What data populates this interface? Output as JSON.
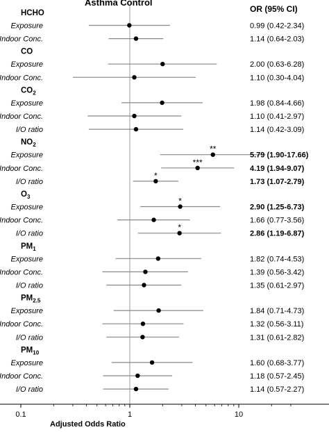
{
  "chart_data": {
    "type": "forest",
    "title": "Asthma Control",
    "or_header": "OR  (95% CI)",
    "xlabel": "Adjusted Odds Ratio",
    "x_scale": "log",
    "xlim": [
      0.1,
      30
    ],
    "x_ticks": [
      0.1,
      1,
      10
    ],
    "x_tick_labels": [
      "0.1",
      "1",
      "10"
    ],
    "reference_line": 1,
    "groups": [
      {
        "name": "HCHO",
        "name_main": "HCHO",
        "name_sub": "",
        "rows": [
          {
            "label": "Exposure",
            "or": 0.99,
            "lo": 0.42,
            "hi": 2.34,
            "text": "0.99 (0.42-2.34)",
            "sig": "",
            "bold": false
          },
          {
            "label": "Indoor Conc.",
            "or": 1.14,
            "lo": 0.64,
            "hi": 2.03,
            "text": "1.14 (0.64-2.03)",
            "sig": "",
            "bold": false
          }
        ]
      },
      {
        "name": "CO",
        "name_main": "CO",
        "name_sub": "",
        "rows": [
          {
            "label": "Exposure",
            "or": 2.0,
            "lo": 0.63,
            "hi": 6.28,
            "text": "2.00 (0.63-6.28)",
            "sig": "",
            "bold": false
          },
          {
            "label": "Indoor Conc.",
            "or": 1.1,
            "lo": 0.3,
            "hi": 4.04,
            "text": "1.10 (0.30-4.04)",
            "sig": "",
            "bold": false
          }
        ]
      },
      {
        "name": "CO2",
        "name_main": "CO",
        "name_sub": "2",
        "rows": [
          {
            "label": "Exposure",
            "or": 1.98,
            "lo": 0.84,
            "hi": 4.66,
            "text": "1.98 (0.84-4.66)",
            "sig": "",
            "bold": false
          },
          {
            "label": "Indoor Conc.",
            "or": 1.1,
            "lo": 0.41,
            "hi": 2.97,
            "text": "1.10 (0.41-2.97)",
            "sig": "",
            "bold": false
          },
          {
            "label": "I/O ratio",
            "or": 1.14,
            "lo": 0.42,
            "hi": 3.09,
            "text": "1.14 (0.42-3.09)",
            "sig": "",
            "bold": false
          }
        ]
      },
      {
        "name": "NO2",
        "name_main": "NO",
        "name_sub": "2",
        "rows": [
          {
            "label": "Exposure",
            "or": 5.79,
            "lo": 1.9,
            "hi": 17.66,
            "text": "5.79 (1.90-17.66)",
            "sig": "**",
            "bold": true
          },
          {
            "label": "Indoor Conc.",
            "or": 4.19,
            "lo": 1.94,
            "hi": 9.07,
            "text": "4.19 (1.94-9.07)",
            "sig": "***",
            "bold": true
          },
          {
            "label": "I/O ratio",
            "or": 1.73,
            "lo": 1.07,
            "hi": 2.79,
            "text": "1.73 (1.07-2.79)",
            "sig": "*",
            "bold": true
          }
        ]
      },
      {
        "name": "O3",
        "name_main": "O",
        "name_sub": "3",
        "rows": [
          {
            "label": "Exposure",
            "or": 2.9,
            "lo": 1.25,
            "hi": 6.73,
            "text": "2.90 (1.25-6.73)",
            "sig": "*",
            "bold": true
          },
          {
            "label": "Indoor Conc.",
            "or": 1.66,
            "lo": 0.77,
            "hi": 3.56,
            "text": "1.66 (0.77-3.56)",
            "sig": "",
            "bold": false
          },
          {
            "label": "I/O ratio",
            "or": 2.86,
            "lo": 1.19,
            "hi": 6.87,
            "text": "2.86 (1.19-6.87)",
            "sig": "*",
            "bold": true
          }
        ]
      },
      {
        "name": "PM1",
        "name_main": "PM",
        "name_sub": "1",
        "rows": [
          {
            "label": "Exposure",
            "or": 1.82,
            "lo": 0.74,
            "hi": 4.53,
            "text": "1.82 (0.74-4.53)",
            "sig": "",
            "bold": false
          },
          {
            "label": "Indoor Conc.",
            "or": 1.39,
            "lo": 0.56,
            "hi": 3.42,
            "text": "1.39 (0.56-3.42)",
            "sig": "",
            "bold": false
          },
          {
            "label": "I/O ratio",
            "or": 1.35,
            "lo": 0.61,
            "hi": 2.97,
            "text": "1.35 (0.61-2.97)",
            "sig": "",
            "bold": false
          }
        ]
      },
      {
        "name": "PM2.5",
        "name_main": "PM",
        "name_sub": "2.5",
        "rows": [
          {
            "label": "Exposure",
            "or": 1.84,
            "lo": 0.71,
            "hi": 4.73,
            "text": "1.84 (0.71-4.73)",
            "sig": "",
            "bold": false
          },
          {
            "label": "Indoor Conc.",
            "or": 1.32,
            "lo": 0.56,
            "hi": 3.11,
            "text": "1.32 (0.56-3.11)",
            "sig": "",
            "bold": false
          },
          {
            "label": "I/O ratio",
            "or": 1.31,
            "lo": 0.61,
            "hi": 2.82,
            "text": "1.31 (0.61-2.82)",
            "sig": "",
            "bold": false
          }
        ]
      },
      {
        "name": "PM10",
        "name_main": "PM",
        "name_sub": "10",
        "rows": [
          {
            "label": "Exposure",
            "or": 1.6,
            "lo": 0.68,
            "hi": 3.77,
            "text": "1.60 (0.68-3.77)",
            "sig": "",
            "bold": false
          },
          {
            "label": "Indoor Conc.",
            "or": 1.18,
            "lo": 0.57,
            "hi": 2.45,
            "text": "1.18 (0.57-2.45)",
            "sig": "",
            "bold": false
          },
          {
            "label": "I/O ratio",
            "or": 1.14,
            "lo": 0.57,
            "hi": 2.27,
            "text": "1.14 (0.57-2.27)",
            "sig": "",
            "bold": false
          }
        ]
      }
    ]
  }
}
